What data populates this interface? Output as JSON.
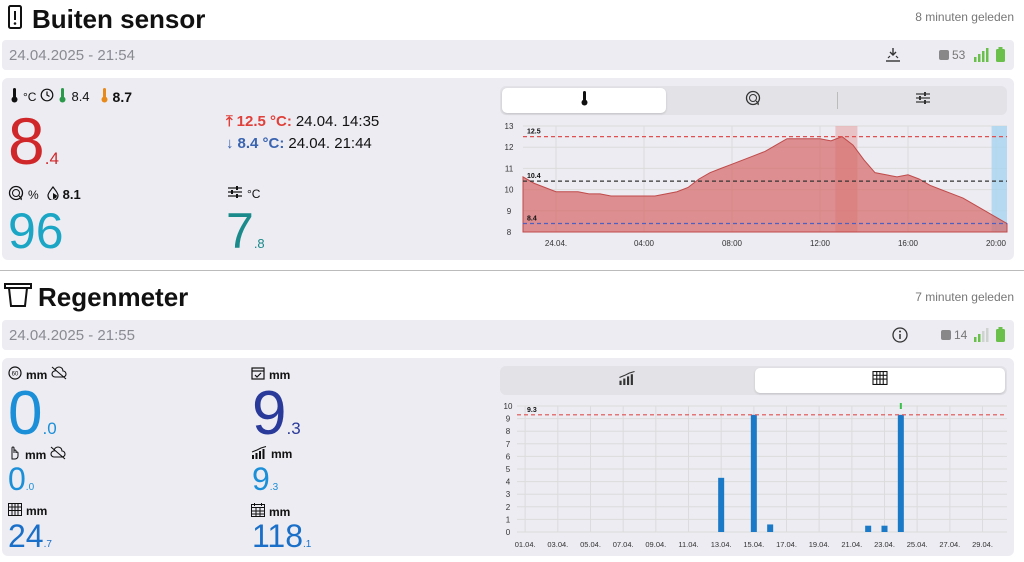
{
  "sensor": {
    "title": "Buiten sensor",
    "ago": "8 minuten geleden",
    "timestamp": "24.04.2025 - 21:54",
    "battery_code": "53",
    "temp_unit": "°C",
    "dewpoint": "8.4",
    "feels_like": "8.7",
    "temp_main": "8",
    "temp_dec": ".4",
    "max_label": "12.5 °C:",
    "max_time": "24.04. 14:35",
    "min_label": "8.4 °C:",
    "min_time": "24.04. 21:44",
    "hum_unit": "%",
    "hum_extra": "8.1",
    "hum_main": "96",
    "pressure_unit": "°C",
    "pressure_main": "7",
    "pressure_dec": ".8",
    "colors": {
      "temp": "#d0282a",
      "max": "#e0403a",
      "min": "#3a64b0",
      "humidity": "#1aa6c4",
      "pressure": "#1a8a8a"
    }
  },
  "temp_chart": {
    "tabs": [
      "thermometer-icon",
      "humidity-gauge-icon",
      "sliders-icon"
    ],
    "active_tab": 0,
    "chart_data": {
      "type": "area",
      "y_ticks": [
        "8",
        "9",
        "10",
        "11",
        "12",
        "13"
      ],
      "ylim": [
        8,
        13
      ],
      "x_ticks": [
        "24.04.",
        "04:00",
        "08:00",
        "12:00",
        "16:00",
        "20:00"
      ],
      "ref_lines": [
        {
          "label": "12.5",
          "value": 12.5,
          "color": "#e05050"
        },
        {
          "label": "10.4",
          "value": 10.4,
          "color": "#333333"
        },
        {
          "label": "8.4",
          "value": 8.4,
          "color": "#5060c0"
        }
      ],
      "series": [
        {
          "x": [
            0,
            0.5,
            1,
            1.5,
            2,
            2.5,
            3,
            3.5,
            4,
            4.5,
            5,
            5.5,
            6,
            6.5,
            7,
            7.5,
            8,
            8.5,
            9,
            9.5,
            10,
            10.5,
            11,
            11.5,
            12,
            12.5,
            13,
            13.5,
            14,
            14.5,
            15,
            15.5,
            16,
            16.5,
            17,
            17.5,
            18,
            18.5,
            19,
            19.5,
            20,
            20.5,
            21,
            21.5,
            22
          ],
          "values": [
            10.6,
            10.3,
            10.1,
            9.9,
            9.9,
            9.9,
            9.8,
            9.8,
            9.7,
            9.7,
            9.7,
            9.7,
            9.7,
            9.8,
            9.9,
            10.1,
            10.5,
            10.8,
            11.0,
            11.2,
            11.4,
            11.6,
            11.8,
            12.1,
            12.4,
            12.4,
            12.4,
            12.4,
            12.3,
            12.5,
            12.1,
            11.4,
            10.8,
            10.7,
            10.6,
            10.7,
            10.5,
            10.2,
            10.0,
            9.8,
            9.6,
            9.3,
            9.0,
            8.7,
            8.4
          ]
        }
      ]
    }
  },
  "rain": {
    "title": "Regenmeter",
    "ago": "7 minuten geleden",
    "timestamp": "24.04.2025 - 21:55",
    "battery_code": "14",
    "unit": "mm",
    "rate_main": "0",
    "rate_dec": ".0",
    "day_main": "9",
    "day_dec": ".3",
    "hour_main": "0",
    "hour_dec": ".0",
    "cumulative_main": "9",
    "cumulative_dec": ".3",
    "week_main": "24",
    "week_dec": ".7",
    "month_main": "118",
    "month_dec": ".1",
    "colors": {
      "dark": "#2a3a9a",
      "light": "#1b8fd8",
      "mid": "#1a6fc8"
    }
  },
  "rain_chart": {
    "tabs": [
      "rising-bars-icon",
      "calendar-grid-icon"
    ],
    "active_tab": 1,
    "chart_data": {
      "type": "bar",
      "y_ticks": [
        "0",
        "1",
        "2",
        "3",
        "4",
        "5",
        "6",
        "7",
        "8",
        "9",
        "10"
      ],
      "ylim": [
        0,
        10
      ],
      "x_ticks": [
        "01.04.",
        "03.04.",
        "05.04.",
        "07.04.",
        "09.04.",
        "11.04.",
        "13.04.",
        "15.04.",
        "17.04.",
        "19.04.",
        "21.04.",
        "23.04.",
        "25.04.",
        "27.04.",
        "29.04."
      ],
      "ref_lines": [
        {
          "label": "9.3",
          "value": 9.3,
          "color": "#e05050"
        }
      ],
      "days": [
        13,
        15,
        16,
        22,
        23,
        24
      ],
      "values": [
        4.3,
        9.3,
        0.6,
        0.5,
        0.5,
        9.3
      ]
    }
  }
}
